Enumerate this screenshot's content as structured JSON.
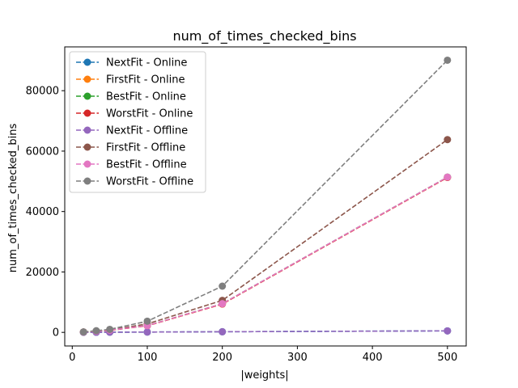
{
  "chart_data": {
    "type": "line",
    "title": "num_of_times_checked_bins",
    "xlabel": "|weights|",
    "ylabel": "num_of_times_checked_bins",
    "xlim": [
      -10,
      525
    ],
    "ylim": [
      -4500,
      94500
    ],
    "xticks": [
      0,
      100,
      200,
      300,
      400,
      500
    ],
    "yticks": [
      0,
      20000,
      40000,
      60000,
      80000
    ],
    "grid": false,
    "legend_position": "upper left",
    "line_style": "dashed",
    "marker": "circle",
    "x": [
      15,
      32,
      50,
      100,
      200,
      500
    ],
    "series": [
      {
        "name": "NextFit - Online",
        "color": "#1f77b4",
        "values": [
          15,
          32,
          50,
          100,
          200,
          500
        ]
      },
      {
        "name": "FirstFit - Online",
        "color": "#ff7f0e",
        "values": [
          110,
          400,
          700,
          2200,
          9400,
          51300
        ]
      },
      {
        "name": "BestFit - Online",
        "color": "#2ca02c",
        "values": [
          115,
          410,
          720,
          2250,
          9500,
          51400
        ]
      },
      {
        "name": "WorstFit - Online",
        "color": "#d62728",
        "values": [
          110,
          400,
          700,
          2200,
          9400,
          51300
        ]
      },
      {
        "name": "NextFit - Offline",
        "color": "#9467bd",
        "values": [
          15,
          32,
          50,
          100,
          200,
          500
        ]
      },
      {
        "name": "FirstFit - Offline",
        "color": "#8c564b",
        "values": [
          120,
          450,
          800,
          2800,
          10600,
          63800
        ]
      },
      {
        "name": "BestFit - Offline",
        "color": "#e377c2",
        "values": [
          115,
          410,
          720,
          2250,
          9500,
          51400
        ]
      },
      {
        "name": "WorstFit - Offline",
        "color": "#7f7f7f",
        "values": [
          150,
          550,
          1000,
          3700,
          15300,
          90100
        ]
      }
    ]
  }
}
